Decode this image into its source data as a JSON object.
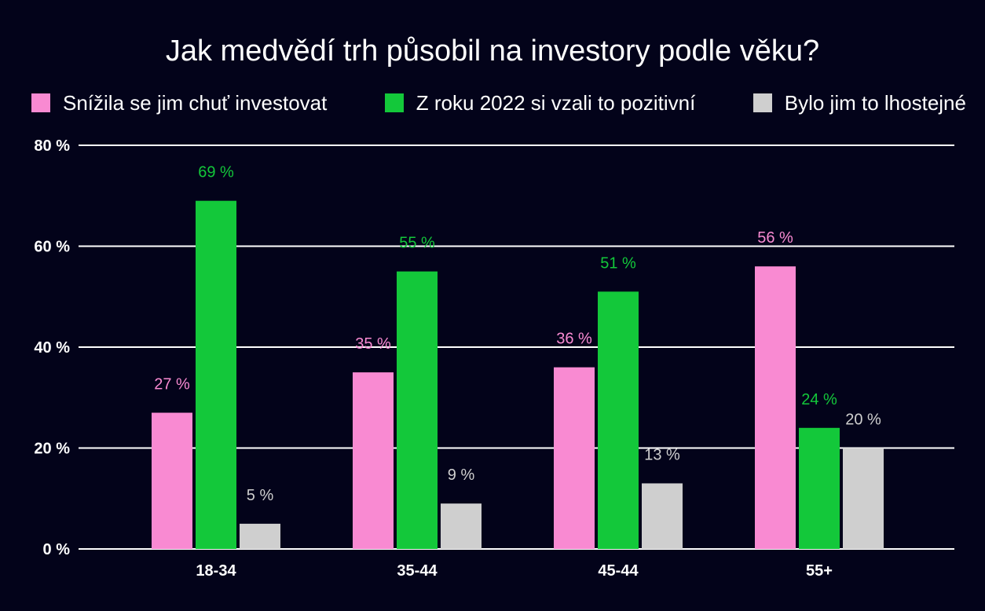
{
  "colors": {
    "background": "#03031a",
    "grid": "#ffffff",
    "text": "#ffffff"
  },
  "chart_data": {
    "type": "bar",
    "title": "Jak medvědí trh působil na investory podle věku?",
    "categories": [
      "18-34",
      "35-44",
      "45-44",
      "55+"
    ],
    "series": [
      {
        "name": "Snížila se jim chuť investovat",
        "color": "#f98ad2",
        "values": [
          27,
          35,
          36,
          56
        ],
        "labels": [
          "27 %",
          "35 %",
          "36 %",
          "56 %"
        ]
      },
      {
        "name": "Z roku 2022 si vzali to pozitivní",
        "color": "#13c83a",
        "values": [
          69,
          55,
          51,
          24
        ],
        "labels": [
          "69 %",
          "55 %",
          "51 %",
          "24 %"
        ]
      },
      {
        "name": "Bylo jim to lhostejné",
        "color": "#cfcfcf",
        "values": [
          5,
          9,
          13,
          20
        ],
        "labels": [
          "5 %",
          "9 %",
          "13 %",
          "20 %"
        ]
      }
    ],
    "yticks": [
      0,
      20,
      40,
      60,
      80
    ],
    "ytick_labels": [
      "0 %",
      "20 %",
      "40 %",
      "60 %",
      "80 %"
    ],
    "ylim": [
      0,
      80
    ],
    "grid": true,
    "legend": "top"
  }
}
